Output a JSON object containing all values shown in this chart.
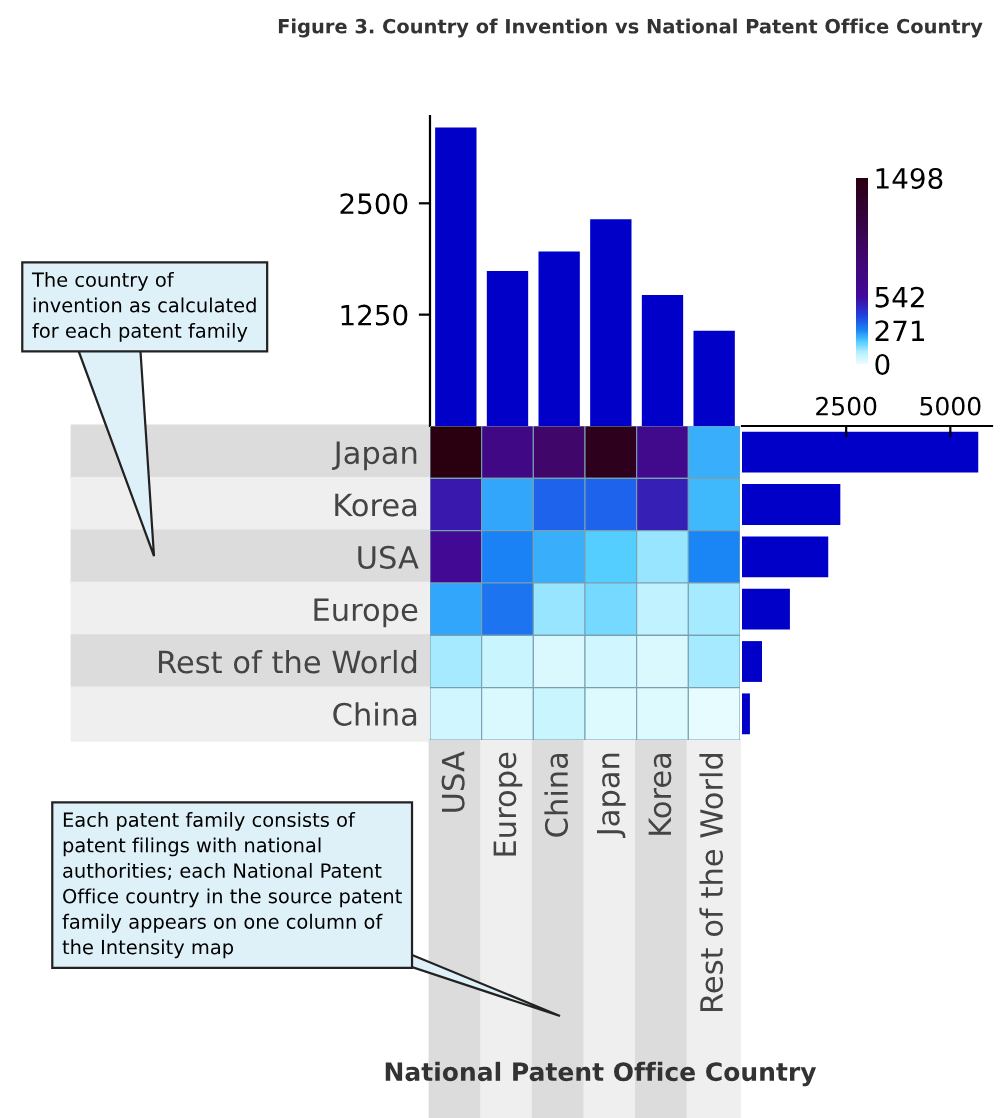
{
  "chart_data": [
    {
      "type": "bar",
      "title": "Figure 3. Country of Invention vs National Patent Office Country",
      "categories": [
        null,
        null,
        null,
        null,
        null,
        null
      ],
      "values": [
        3350,
        1740,
        1960,
        2320,
        1470,
        1070
      ],
      "color": "#0000c8",
      "ylim": [
        0,
        3480
      ],
      "yticks": [
        1250,
        2500
      ],
      "tick_labels": "y"
    },
    {
      "type": "heatmap",
      "xlabel": "National Patent Office Country",
      "categories": [
        "USA",
        "Europe",
        "China",
        "Japan",
        "Korea",
        "Rest of the World"
      ],
      "y_categories": [
        "Japan",
        "Korea",
        "USA",
        "Europe",
        "Rest of the World",
        "China"
      ],
      "cells": [
        [
          1498,
          700,
          900,
          1400,
          650,
          220
        ],
        [
          500,
          230,
          330,
          330,
          480,
          210
        ],
        [
          580,
          280,
          220,
          180,
          120,
          270
        ],
        [
          230,
          300,
          120,
          150,
          80,
          110
        ],
        [
          110,
          60,
          30,
          50,
          30,
          110
        ],
        [
          50,
          35,
          60,
          25,
          25,
          10
        ]
      ],
      "clim": [
        0,
        1498
      ],
      "cticks": [
        0,
        271,
        542,
        1498
      ],
      "annotations": [
        "The country of invention as calculated for each patent family",
        "Each patent family consists of patent filings with national authorities; each National Patent Office country in the source patent family appears on one column of the Intensity map"
      ]
    },
    {
      "type": "bar",
      "orientation": "horizontal",
      "categories": [
        null,
        null,
        null,
        null,
        null,
        null
      ],
      "values": [
        5670,
        2360,
        2070,
        1150,
        480,
        190
      ],
      "color": "#0000c8",
      "xlim": [
        0,
        6000
      ],
      "xticks": [
        2500,
        5000
      ],
      "tick_labels": "x"
    }
  ]
}
